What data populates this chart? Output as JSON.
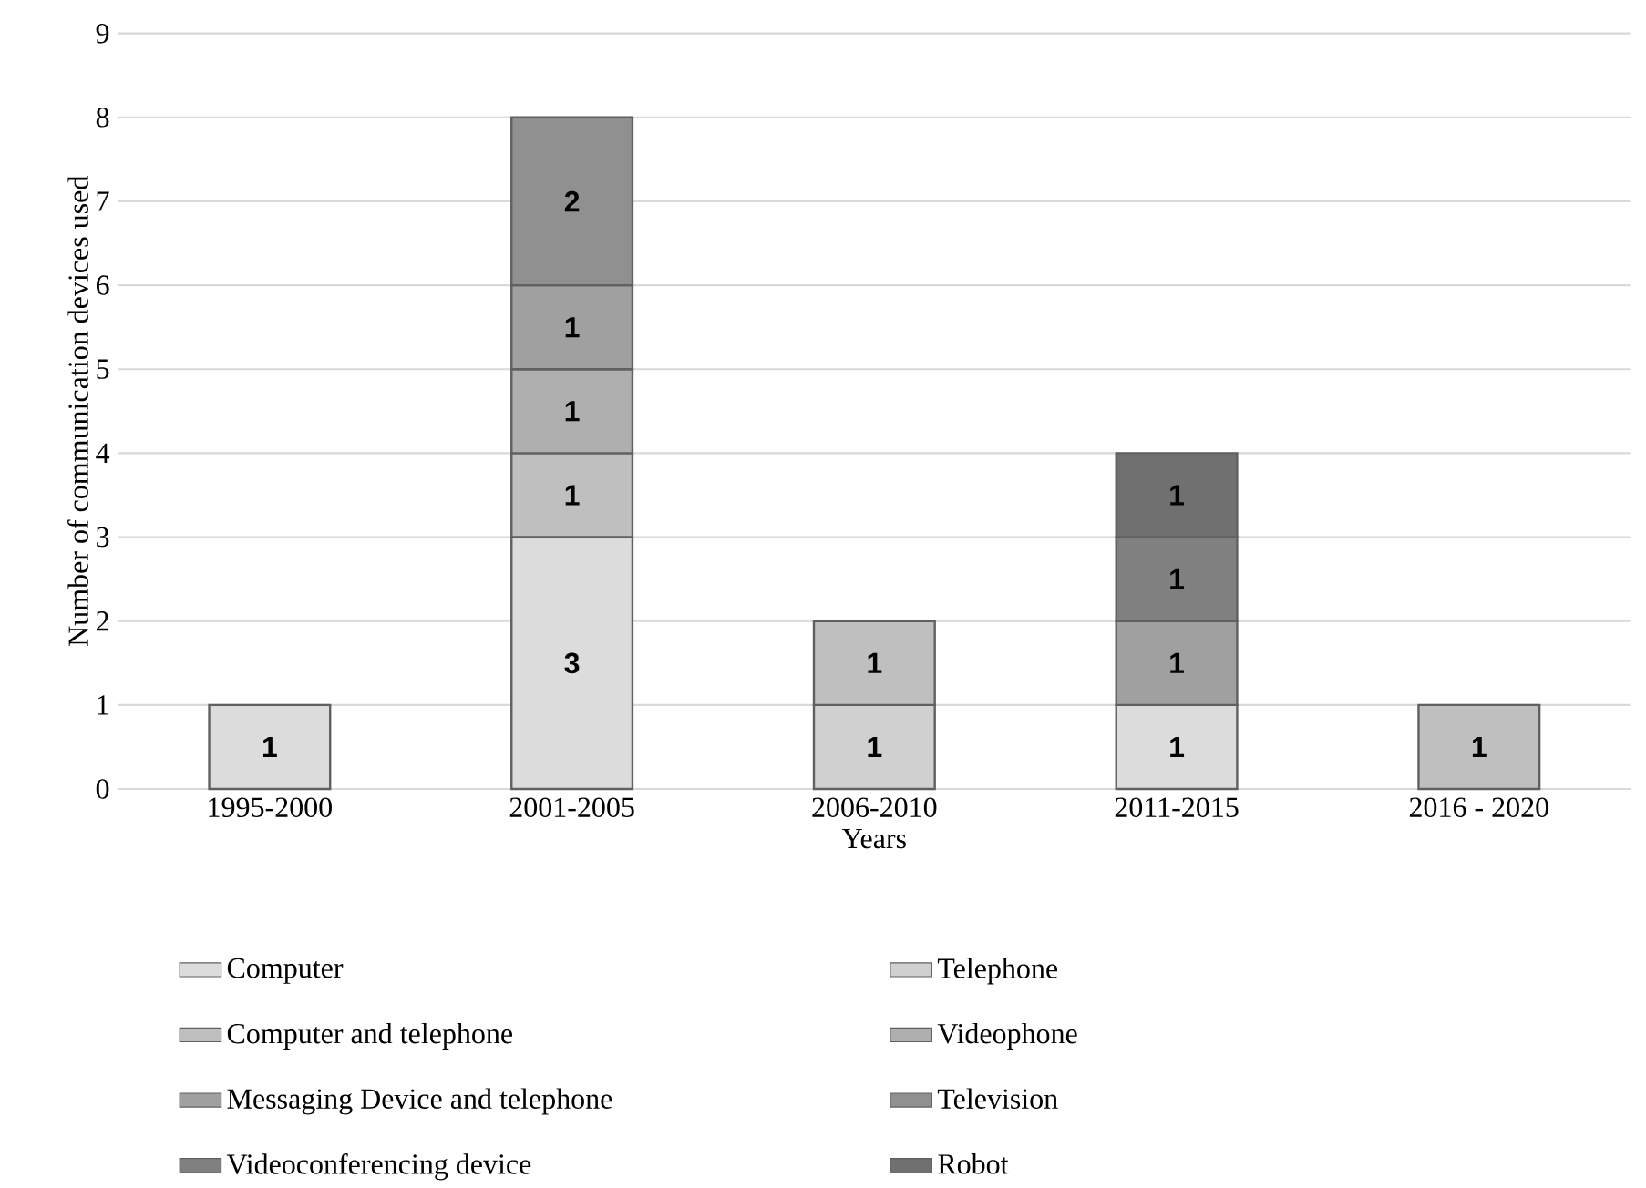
{
  "chart_data": {
    "type": "bar",
    "stacked": true,
    "xlabel": "Years",
    "ylabel": "Number of communication devices used",
    "categories": [
      "1995-2000",
      "2001-2005",
      "2006-2010",
      "2011-2015",
      "2016 - 2020"
    ],
    "series": [
      {
        "name": "Computer",
        "color": "#dcdcdc",
        "values": [
          1,
          3,
          null,
          1,
          null
        ]
      },
      {
        "name": "Telephone",
        "color": "#d0d0d0",
        "values": [
          null,
          null,
          1,
          null,
          null
        ]
      },
      {
        "name": "Computer and telephone",
        "color": "#bfbfbf",
        "values": [
          null,
          1,
          1,
          null,
          1
        ]
      },
      {
        "name": "Videophone",
        "color": "#afafaf",
        "values": [
          null,
          1,
          null,
          null,
          null
        ]
      },
      {
        "name": "Messaging Device and telephone",
        "color": "#a0a0a0",
        "values": [
          null,
          1,
          null,
          1,
          null
        ]
      },
      {
        "name": "Television",
        "color": "#909090",
        "values": [
          null,
          2,
          null,
          null,
          null
        ]
      },
      {
        "name": "Videoconferencing device",
        "color": "#808080",
        "values": [
          null,
          null,
          null,
          1,
          null
        ]
      },
      {
        "name": "Robot",
        "color": "#707070",
        "values": [
          null,
          null,
          null,
          1,
          null
        ]
      }
    ],
    "ylim": [
      0,
      9
    ],
    "yticks": [
      0,
      1,
      2,
      3,
      4,
      5,
      6,
      7,
      8,
      9
    ],
    "grid": "y",
    "legend": "bottom",
    "data_labels": true
  }
}
